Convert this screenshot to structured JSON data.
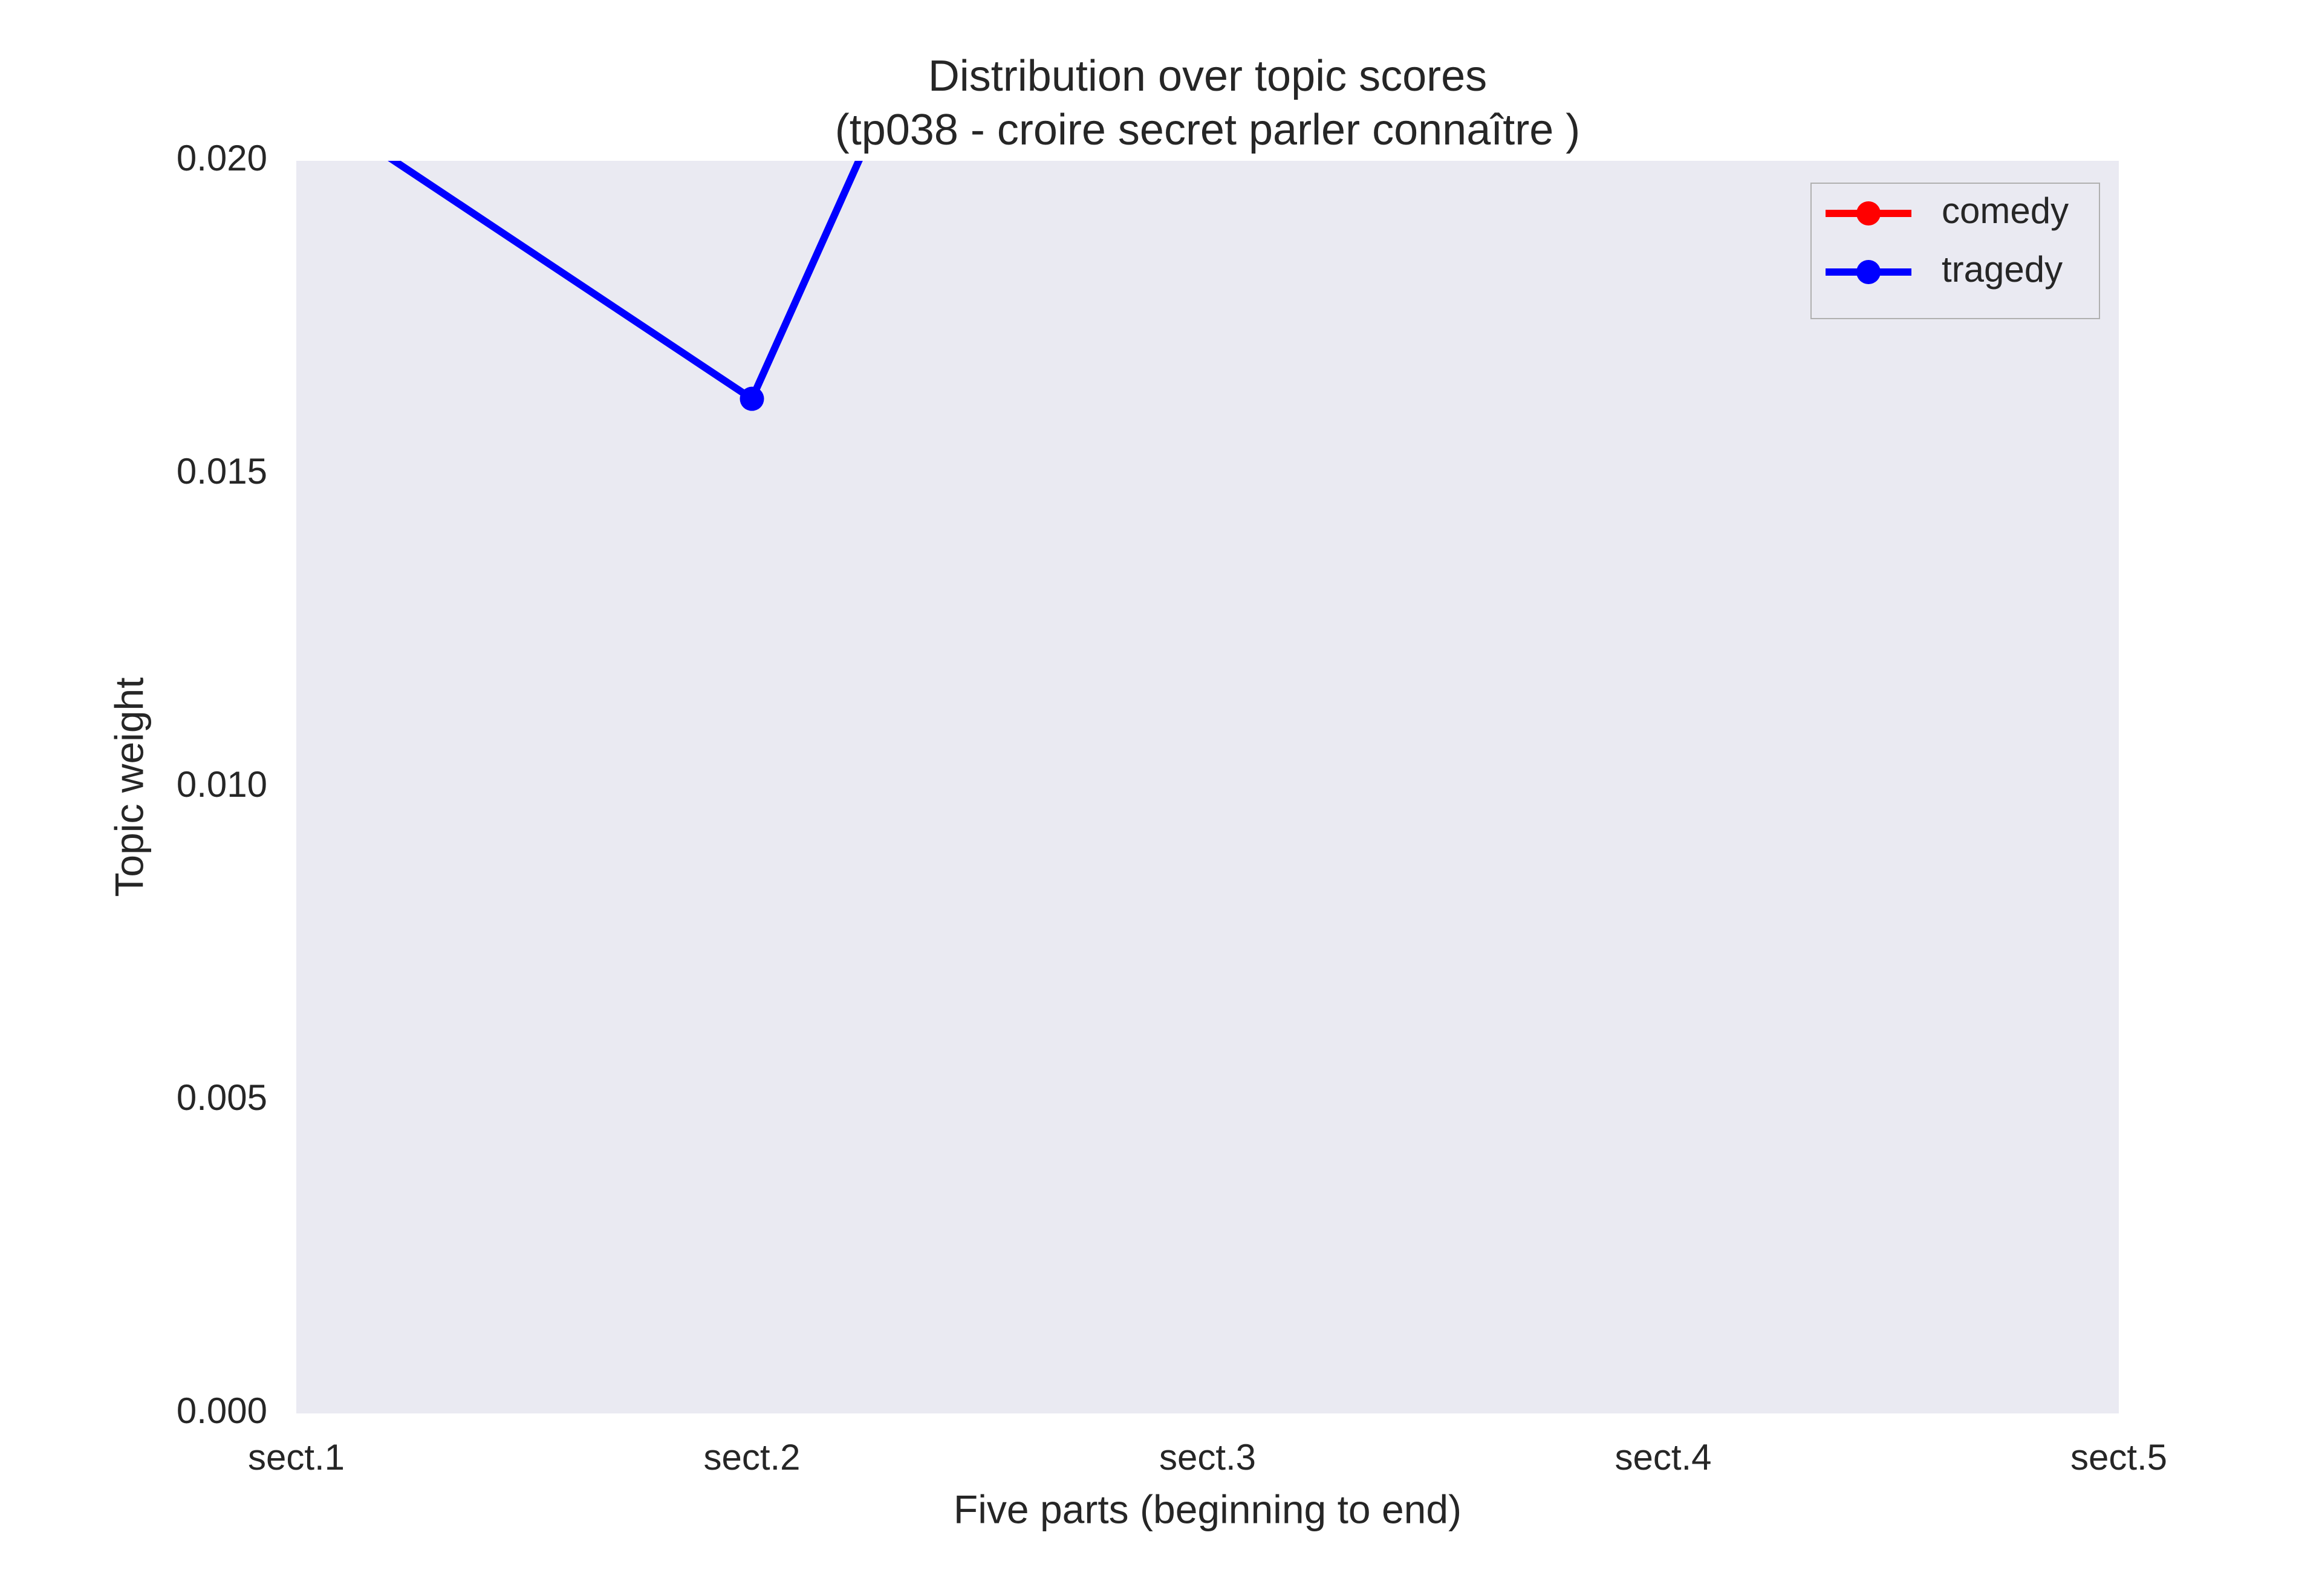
{
  "chart_data": {
    "type": "line",
    "title": [
      "Distribution over topic scores",
      "(tp038 - croire secret parler connaître )"
    ],
    "x_label": "Five parts (beginning to end)",
    "y_label": "Topic weight",
    "categories": [
      "sect.1",
      "sect.2",
      "sect.3",
      "sect.4",
      "sect.5"
    ],
    "series": [
      {
        "name": "comedy",
        "color": "#ff0000",
        "values": [
          null,
          null,
          null,
          null,
          null
        ]
      },
      {
        "name": "tragedy",
        "color": "#0000ff",
        "values": [
          0.02104,
          0.0162,
          0.0324,
          null,
          null
        ]
      }
    ],
    "ylim": [
      0,
      0.02
    ],
    "yticks": [
      {
        "value": 0,
        "label": "0.000"
      },
      {
        "value": 0.005,
        "label": "0.005"
      },
      {
        "value": 0.01,
        "label": "0.010"
      },
      {
        "value": 0.015,
        "label": "0.015"
      },
      {
        "value": 0.02,
        "label": "0.020"
      }
    ],
    "grid": false,
    "legend": "upper right",
    "background": "#eaeaf2"
  }
}
